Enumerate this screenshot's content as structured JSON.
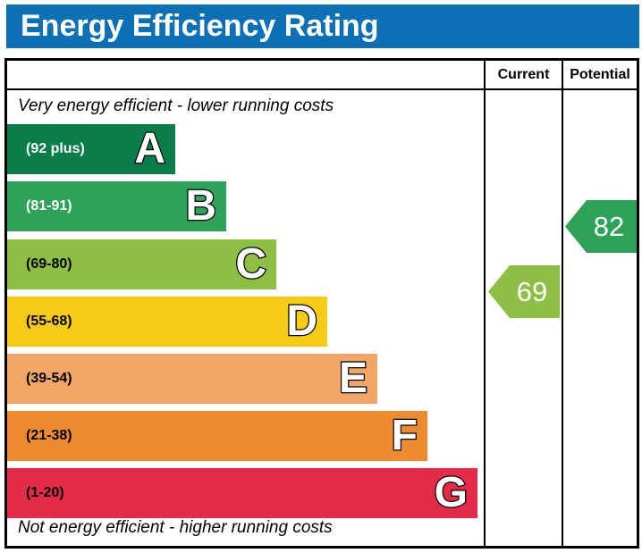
{
  "title": "Energy Efficiency Rating",
  "title_bar_color": "#0d70b4",
  "header": {
    "current": "Current",
    "potential": "Potential"
  },
  "notes": {
    "top": "Very energy efficient - lower running costs",
    "bottom": "Not energy efficient - higher running costs"
  },
  "bands": [
    {
      "letter": "A",
      "range": "(92 plus)",
      "color": "#0b7d4b"
    },
    {
      "letter": "B",
      "range": "(81-91)",
      "color": "#2fa25a"
    },
    {
      "letter": "C",
      "range": "(69-80)",
      "color": "#8cbf43"
    },
    {
      "letter": "D",
      "range": "(55-68)",
      "color": "#f5cb15"
    },
    {
      "letter": "E",
      "range": "(39-54)",
      "color": "#f0a666"
    },
    {
      "letter": "F",
      "range": "(21-38)",
      "color": "#ee8b31"
    },
    {
      "letter": "G",
      "range": "(1-20)",
      "color": "#e42b49"
    }
  ],
  "ratings": {
    "current": {
      "value": "69",
      "color": "#8cbf43",
      "band": "C"
    },
    "potential": {
      "value": "82",
      "color": "#2fa25a",
      "band": "B"
    }
  },
  "chart_data": {
    "type": "bar",
    "title": "Energy Efficiency Rating",
    "categories": [
      "A (92 plus)",
      "B (81-91)",
      "C (69-80)",
      "D (55-68)",
      "E (39-54)",
      "F (21-38)",
      "G (1-20)"
    ],
    "band_colors": [
      "#0b7d4b",
      "#2fa25a",
      "#8cbf43",
      "#f5cb15",
      "#f0a666",
      "#ee8b31",
      "#e42b49"
    ],
    "scale_range": [
      1,
      100
    ],
    "series": [
      {
        "name": "Current",
        "value": 69,
        "band": "C",
        "color": "#8cbf43"
      },
      {
        "name": "Potential",
        "value": 82,
        "band": "B",
        "color": "#2fa25a"
      }
    ],
    "annotations": [
      "Very energy efficient - lower running costs",
      "Not energy efficient - higher running costs"
    ],
    "legend_position": "none",
    "grid": false
  }
}
